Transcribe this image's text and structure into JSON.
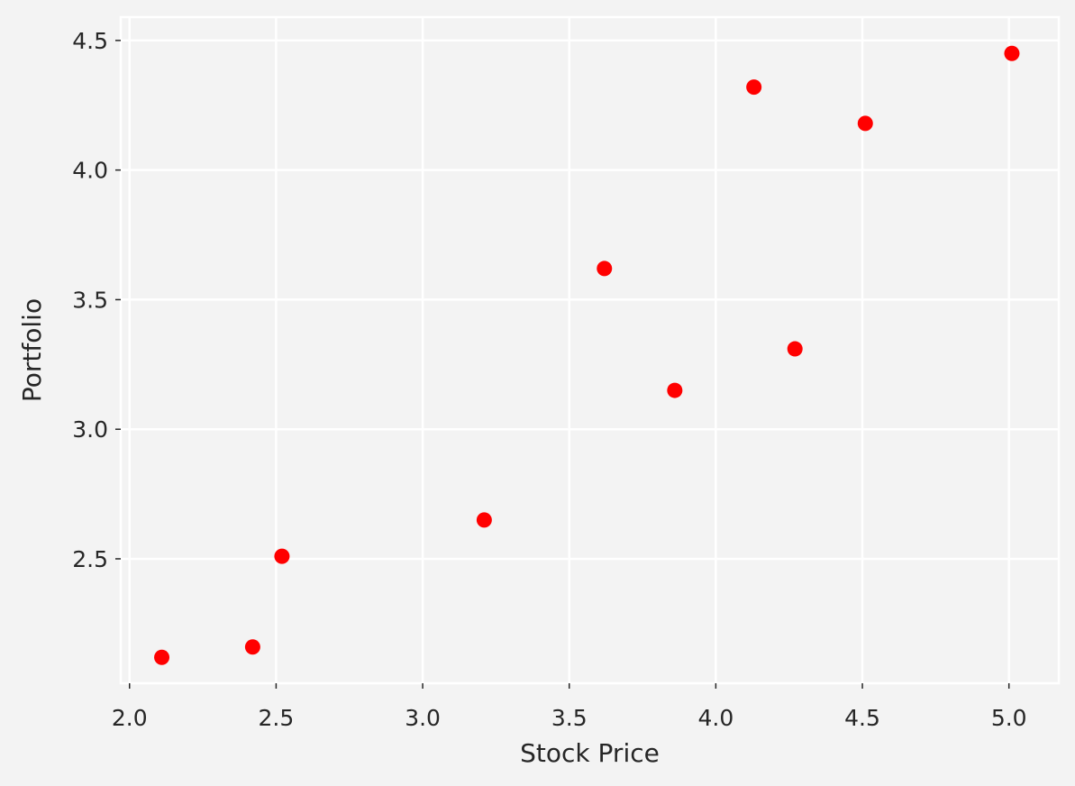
{
  "chart_data": {
    "type": "scatter",
    "xlabel": "Stock Price",
    "ylabel": "Portfolio",
    "xlim": [
      1.97,
      5.17
    ],
    "ylim": [
      2.02,
      4.59
    ],
    "xticks": [
      2.0,
      2.5,
      3.0,
      3.5,
      4.0,
      4.5,
      5.0
    ],
    "yticks": [
      2.5,
      3.0,
      3.5,
      4.0,
      4.5
    ],
    "xtick_labels": [
      "2.0",
      "2.5",
      "3.0",
      "3.5",
      "4.0",
      "4.5",
      "5.0"
    ],
    "ytick_labels": [
      "2.5",
      "3.0",
      "3.5",
      "4.0",
      "4.5"
    ],
    "grid": true,
    "marker_color": "#ff0000",
    "background_color": "#f3f3f3",
    "plot_background_color": "#f3f3f3",
    "grid_color": "#ffffff",
    "points": [
      {
        "x": 2.11,
        "y": 2.12
      },
      {
        "x": 2.42,
        "y": 2.16
      },
      {
        "x": 2.52,
        "y": 2.51
      },
      {
        "x": 3.21,
        "y": 2.65
      },
      {
        "x": 3.62,
        "y": 3.62
      },
      {
        "x": 3.86,
        "y": 3.15
      },
      {
        "x": 4.13,
        "y": 4.32
      },
      {
        "x": 4.27,
        "y": 3.31
      },
      {
        "x": 4.51,
        "y": 4.18
      },
      {
        "x": 5.01,
        "y": 4.45
      }
    ]
  }
}
